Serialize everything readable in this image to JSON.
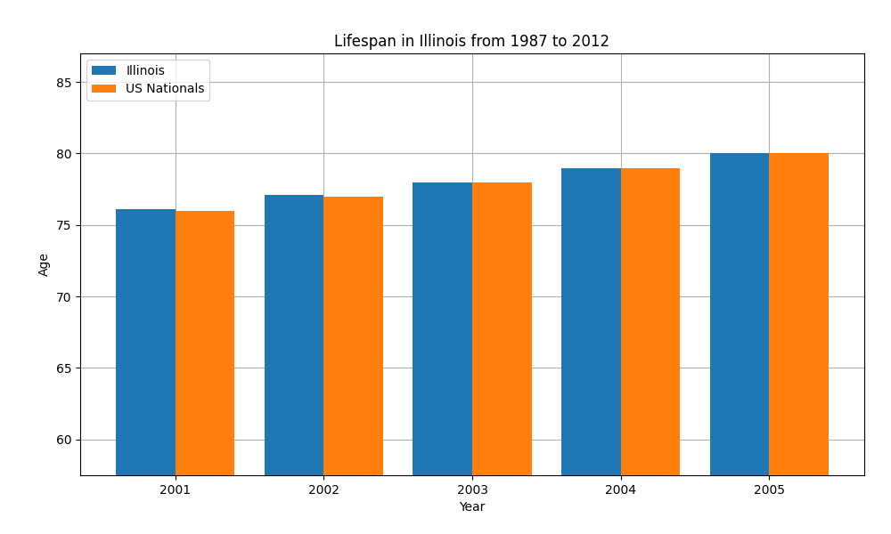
{
  "chart_data": {
    "type": "bar",
    "title": "Lifespan in Illinois from 1987 to 2012",
    "x_label": "Year",
    "y_label": "Age",
    "categories": [
      "2001",
      "2002",
      "2003",
      "2004",
      "2005"
    ],
    "series": [
      {
        "name": "Illinois",
        "values": [
          76.1,
          77.1,
          78.0,
          79.0,
          80.0
        ]
      },
      {
        "name": "US Nationals",
        "values": [
          76.0,
          77.0,
          78.0,
          79.0,
          80.0
        ]
      }
    ],
    "ylim": [
      57.5,
      87
    ],
    "yticks": [
      60,
      65,
      70,
      75,
      80,
      85
    ],
    "grid": true,
    "legend": "upper left"
  }
}
